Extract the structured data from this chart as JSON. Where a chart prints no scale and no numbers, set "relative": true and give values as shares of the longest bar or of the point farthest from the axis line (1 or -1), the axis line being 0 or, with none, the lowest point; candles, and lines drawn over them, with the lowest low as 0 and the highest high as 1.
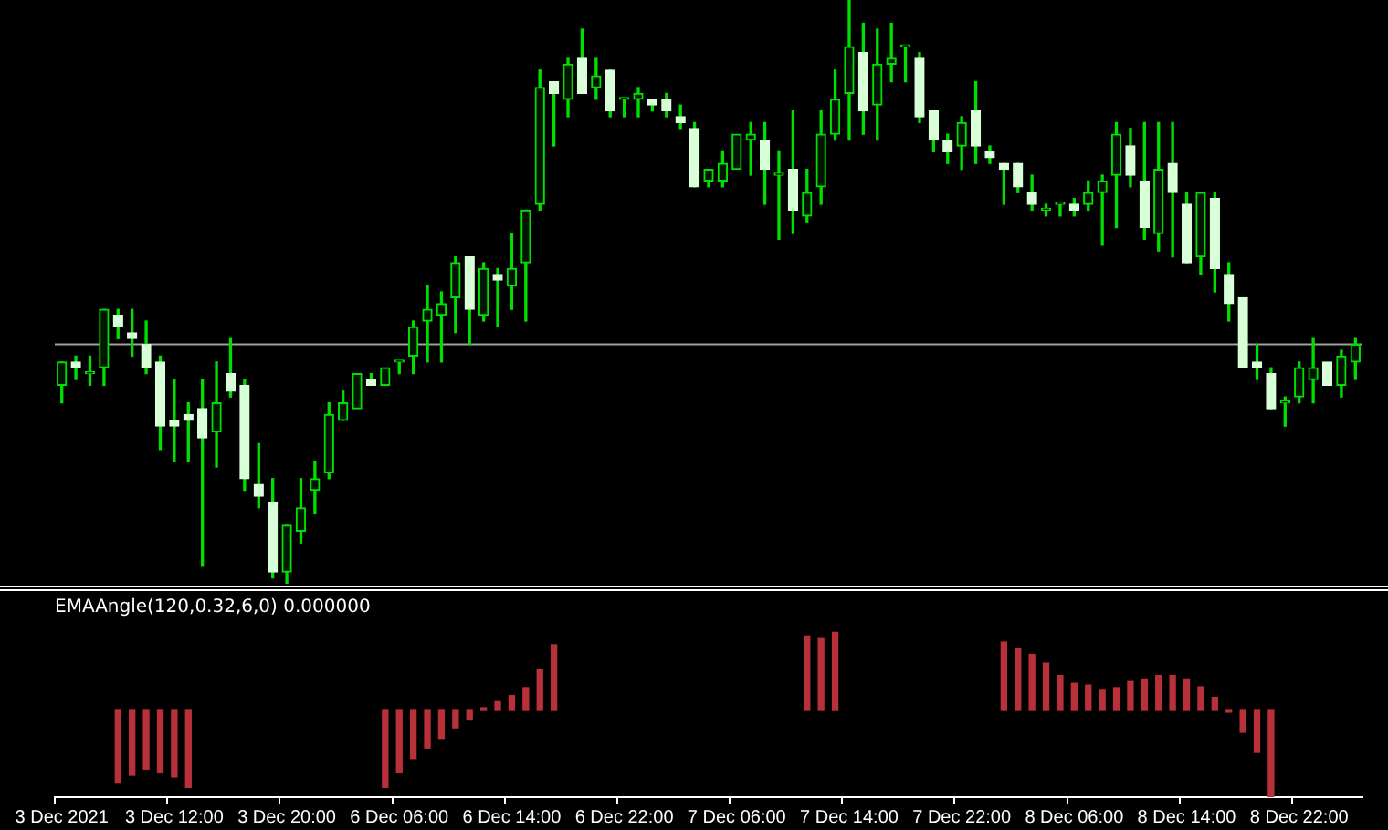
{
  "chart_data": [
    {
      "type": "candlestick",
      "relative": true,
      "tick_labels": false,
      "color": "#00e000",
      "colors": [
        "#00e000",
        "#d8ffd8",
        "#00e000",
        "#00e000",
        "#d8ffd8",
        "#d8ffd8",
        "#d8ffd8",
        "#d8ffd8",
        "#d8ffd8",
        "#d8ffd8",
        "#d8ffd8",
        "#00e000",
        "#d8ffd8",
        "#d8ffd8",
        "#d8ffd8",
        "#d8ffd8",
        "#00e000",
        "#00e000",
        "#00e000",
        "#00e000",
        "#00e000",
        "#00e000",
        "#d8ffd8",
        "#00e000",
        "#00e000",
        "#00e000",
        "#00e000",
        "#00e000",
        "#00e000",
        "#d8ffd8",
        "#00e000",
        "#d8ffd8",
        "#00e000",
        "#00e000",
        "#00e000",
        "#d8ffd8",
        "#00e000",
        "#d8ffd8",
        "#00e000",
        "#d8ffd8",
        "#00e000",
        "#00e000",
        "#d8ffd8",
        "#d8ffd8",
        "#d8ffd8",
        "#d8ffd8",
        "#00e000",
        "#00e000",
        "#00e000",
        "#00e000",
        "#d8ffd8",
        "#00e000",
        "#d8ffd8",
        "#00e000",
        "#00e000",
        "#00e000",
        "#00e000",
        "#d8ffd8",
        "#00e000",
        "#00e000",
        "#00e000",
        "#d8ffd8",
        "#d8ffd8",
        "#d8ffd8",
        "#00e000",
        "#d8ffd8",
        "#d8ffd8",
        "#d8ffd8",
        "#d8ffd8",
        "#d8ffd8",
        "#00e000",
        "#00e000",
        "#d8ffd8",
        "#00e000",
        "#00e000",
        "#00e000",
        "#d8ffd8",
        "#d8ffd8",
        "#00e000",
        "#d8ffd8",
        "#d8ffd8",
        "#00e000",
        "#d8ffd8",
        "#d8ffd8",
        "#d8ffd8",
        "#d8ffd8",
        "#d8ffd8",
        "#00e000",
        "#00e000",
        "#00e000",
        "#d8ffd8",
        "#00e000",
        "#00e000"
      ],
      "categories": [
        null,
        null,
        null,
        null,
        null,
        null,
        null,
        null,
        null,
        null,
        null,
        null,
        null,
        null,
        null,
        null,
        null,
        null,
        null,
        null,
        null,
        null,
        null,
        null,
        null,
        null,
        null,
        null,
        null,
        null,
        null,
        null,
        null,
        null,
        null,
        null,
        null,
        null,
        null,
        null,
        null,
        null,
        null,
        null,
        null,
        null,
        null,
        null,
        null,
        null,
        null,
        null,
        null,
        null,
        null,
        null,
        null,
        null,
        null,
        null,
        null,
        null,
        null,
        null,
        null,
        null,
        null,
        null,
        null,
        null,
        null,
        null,
        null,
        null,
        null,
        null,
        null,
        null,
        null,
        null,
        null,
        null,
        null,
        null,
        null,
        null,
        null,
        null,
        null,
        null,
        null,
        null,
        null
      ],
      "ohlc": [
        [
          0.34,
          0.38,
          0.31,
          0.38
        ],
        [
          0.38,
          0.39,
          0.35,
          0.37
        ],
        [
          0.36,
          0.39,
          0.34,
          0.36
        ],
        [
          0.37,
          0.47,
          0.34,
          0.47
        ],
        [
          0.46,
          0.47,
          0.42,
          0.44
        ],
        [
          0.43,
          0.47,
          0.39,
          0.42
        ],
        [
          0.41,
          0.45,
          0.36,
          0.37
        ],
        [
          0.38,
          0.39,
          0.23,
          0.27
        ],
        [
          0.28,
          0.35,
          0.21,
          0.27
        ],
        [
          0.29,
          0.31,
          0.21,
          0.28
        ],
        [
          0.3,
          0.35,
          0.03,
          0.25
        ],
        [
          0.26,
          0.38,
          0.2,
          0.31
        ],
        [
          0.36,
          0.42,
          0.32,
          0.33
        ],
        [
          0.34,
          0.35,
          0.16,
          0.18
        ],
        [
          0.17,
          0.24,
          0.13,
          0.15
        ],
        [
          0.14,
          0.18,
          0.01,
          0.02
        ],
        [
          0.02,
          0.1,
          0,
          0.1
        ],
        [
          0.09,
          0.18,
          0.07,
          0.13
        ],
        [
          0.16,
          0.21,
          0.12,
          0.18
        ],
        [
          0.19,
          0.31,
          0.18,
          0.29
        ],
        [
          0.28,
          0.33,
          0.28,
          0.31
        ],
        [
          0.3,
          0.36,
          0.3,
          0.36
        ],
        [
          0.35,
          0.36,
          0.34,
          0.34
        ],
        [
          0.34,
          0.37,
          0.34,
          0.37
        ],
        [
          0.38,
          0.38,
          0.36,
          0.38
        ],
        [
          0.39,
          0.45,
          0.36,
          0.44
        ],
        [
          0.45,
          0.51,
          0.38,
          0.47
        ],
        [
          0.46,
          0.5,
          0.38,
          0.48
        ],
        [
          0.49,
          0.56,
          0.43,
          0.55
        ],
        [
          0.56,
          0.56,
          0.41,
          0.47
        ],
        [
          0.46,
          0.55,
          0.45,
          0.54
        ],
        [
          0.53,
          0.54,
          0.44,
          0.52
        ],
        [
          0.51,
          0.6,
          0.47,
          0.54
        ],
        [
          0.55,
          0.64,
          0.45,
          0.64
        ],
        [
          0.65,
          0.88,
          0.64,
          0.85
        ],
        [
          0.86,
          0.86,
          0.75,
          0.84
        ],
        [
          0.83,
          0.9,
          0.8,
          0.89
        ],
        [
          0.9,
          0.95,
          0.84,
          0.84
        ],
        [
          0.85,
          0.9,
          0.83,
          0.87
        ],
        [
          0.88,
          0.88,
          0.8,
          0.81
        ],
        [
          0.83,
          0.83,
          0.8,
          0.83
        ],
        [
          0.83,
          0.85,
          0.8,
          0.84
        ],
        [
          0.83,
          0.83,
          0.81,
          0.82
        ],
        [
          0.83,
          0.84,
          0.8,
          0.81
        ],
        [
          0.8,
          0.82,
          0.78,
          0.79
        ],
        [
          0.78,
          0.79,
          0.68,
          0.68
        ],
        [
          0.69,
          0.71,
          0.68,
          0.71
        ],
        [
          0.69,
          0.74,
          0.68,
          0.72
        ],
        [
          0.71,
          0.77,
          0.71,
          0.77
        ],
        [
          0.76,
          0.79,
          0.7,
          0.77
        ],
        [
          0.76,
          0.79,
          0.65,
          0.71
        ],
        [
          0.7,
          0.74,
          0.59,
          0.7
        ],
        [
          0.71,
          0.81,
          0.6,
          0.64
        ],
        [
          0.63,
          0.71,
          0.62,
          0.67
        ],
        [
          0.68,
          0.81,
          0.65,
          0.77
        ],
        [
          0.77,
          0.88,
          0.76,
          0.83
        ],
        [
          0.84,
          1,
          0.76,
          0.92
        ],
        [
          0.91,
          0.96,
          0.77,
          0.81
        ],
        [
          0.82,
          0.95,
          0.76,
          0.89
        ],
        [
          0.89,
          0.96,
          0.86,
          0.9
        ],
        [
          0.92,
          0.92,
          0.86,
          0.92
        ],
        [
          0.9,
          0.91,
          0.79,
          0.8
        ],
        [
          0.81,
          0.81,
          0.74,
          0.76
        ],
        [
          0.76,
          0.77,
          0.72,
          0.74
        ],
        [
          0.75,
          0.8,
          0.71,
          0.79
        ],
        [
          0.81,
          0.86,
          0.72,
          0.75
        ],
        [
          0.74,
          0.75,
          0.72,
          0.73
        ],
        [
          0.72,
          0.72,
          0.65,
          0.71
        ],
        [
          0.72,
          0.72,
          0.67,
          0.68
        ],
        [
          0.67,
          0.7,
          0.64,
          0.65
        ],
        [
          0.64,
          0.65,
          0.63,
          0.64
        ],
        [
          0.65,
          0.65,
          0.63,
          0.65
        ],
        [
          0.65,
          0.66,
          0.63,
          0.64
        ],
        [
          0.65,
          0.69,
          0.64,
          0.67
        ],
        [
          0.67,
          0.7,
          0.58,
          0.69
        ],
        [
          0.7,
          0.79,
          0.61,
          0.77
        ],
        [
          0.75,
          0.78,
          0.68,
          0.7
        ],
        [
          0.69,
          0.79,
          0.59,
          0.61
        ],
        [
          0.6,
          0.79,
          0.57,
          0.71
        ],
        [
          0.72,
          0.79,
          0.56,
          0.67
        ],
        [
          0.65,
          0.67,
          0.55,
          0.55
        ],
        [
          0.56,
          0.67,
          0.53,
          0.67
        ],
        [
          0.66,
          0.67,
          0.5,
          0.54
        ],
        [
          0.53,
          0.55,
          0.45,
          0.48
        ],
        [
          0.49,
          0.49,
          0.37,
          0.37
        ],
        [
          0.38,
          0.41,
          0.35,
          0.37
        ],
        [
          0.36,
          0.37,
          0.3,
          0.3
        ],
        [
          0.31,
          0.32,
          0.27,
          0.31
        ],
        [
          0.32,
          0.38,
          0.31,
          0.37
        ],
        [
          0.35,
          0.42,
          0.31,
          0.37
        ],
        [
          0.38,
          0.38,
          0.34,
          0.34
        ],
        [
          0.34,
          0.4,
          0.32,
          0.39
        ],
        [
          0.38,
          0.42,
          0.35,
          0.41
        ]
      ],
      "ref_lines": [
        {
          "axis": "y",
          "value": 0.41,
          "color": "#a0a0a0"
        }
      ]
    },
    {
      "type": "bar",
      "relative": true,
      "tick_labels": "x",
      "title": "EMAAngle(120,0.32,6,0) 0.000000",
      "color": "#b8303a",
      "categories": [
        "3 Dec 2021",
        null,
        null,
        null,
        null,
        null,
        null,
        null,
        "3 Dec 12:00",
        null,
        null,
        null,
        null,
        null,
        null,
        null,
        "3 Dec 20:00",
        null,
        null,
        null,
        null,
        null,
        null,
        null,
        "6 Dec 06:00",
        null,
        null,
        null,
        null,
        null,
        null,
        null,
        "6 Dec 14:00",
        null,
        null,
        null,
        null,
        null,
        null,
        null,
        "6 Dec 22:00",
        null,
        null,
        null,
        null,
        null,
        null,
        null,
        "7 Dec 06:00",
        null,
        null,
        null,
        null,
        null,
        null,
        null,
        "7 Dec 14:00",
        null,
        null,
        null,
        null,
        null,
        null,
        null,
        "7 Dec 22:00",
        null,
        null,
        null,
        null,
        null,
        null,
        null,
        "8 Dec 06:00",
        null,
        null,
        null,
        null,
        null,
        null,
        null,
        "8 Dec 14:00",
        null,
        null,
        null,
        null,
        null,
        null,
        null,
        "8 Dec 22:00",
        null,
        null,
        null,
        null
      ],
      "values": [
        null,
        null,
        null,
        null,
        -0.84,
        -0.75,
        -0.68,
        -0.72,
        -0.77,
        -0.89,
        null,
        null,
        null,
        null,
        null,
        null,
        null,
        null,
        null,
        null,
        null,
        null,
        null,
        -0.89,
        -0.72,
        -0.56,
        -0.44,
        -0.33,
        -0.21,
        -0.11,
        0.02,
        0.09,
        0.16,
        0.25,
        0.46,
        0.74,
        null,
        null,
        null,
        null,
        null,
        null,
        null,
        null,
        null,
        null,
        null,
        null,
        null,
        null,
        null,
        null,
        null,
        0.84,
        0.82,
        0.88,
        null,
        null,
        null,
        null,
        null,
        null,
        null,
        null,
        null,
        null,
        null,
        0.77,
        0.7,
        0.63,
        0.53,
        0.39,
        0.3,
        0.28,
        0.23,
        0.25,
        0.32,
        0.35,
        0.39,
        0.39,
        0.35,
        0.26,
        0.14,
        -0.03,
        -0.26,
        -0.49,
        -1,
        null,
        null,
        null,
        null,
        null,
        null
      ]
    }
  ]
}
